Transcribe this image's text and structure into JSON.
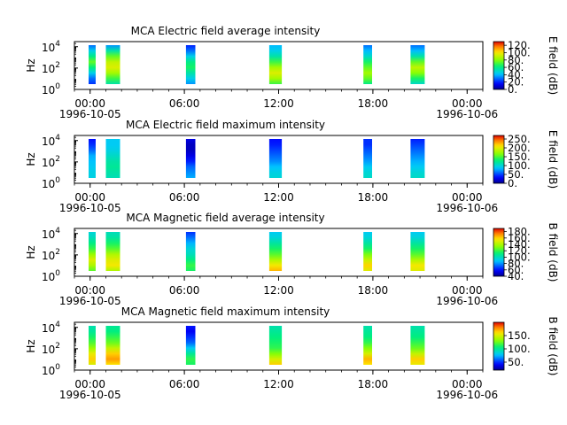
{
  "chart_data": [
    {
      "type": "heatmap",
      "title": "MCA  Electric field average intensity",
      "ylabel": "Hz",
      "y_scale": "log",
      "ylim": [
        1,
        30000
      ],
      "y_ticks": [
        {
          "label": "10",
          "exp": "0",
          "value": 1
        },
        {
          "label": "10",
          "exp": "2",
          "value": 100
        },
        {
          "label": "10",
          "exp": "4",
          "value": 10000
        }
      ],
      "x_ticks": [
        {
          "label": "00:00",
          "sub": "1996-10-05",
          "hour": 0
        },
        {
          "label": "06:00",
          "sub": "",
          "hour": 6
        },
        {
          "label": "12:00",
          "sub": "",
          "hour": 12
        },
        {
          "label": "18:00",
          "sub": "",
          "hour": 18
        },
        {
          "label": "00:00",
          "sub": "1996-10-06",
          "hour": 24
        }
      ],
      "xlim_hours": [
        -1,
        25
      ],
      "colorbar": {
        "label": "E field (dB)",
        "range": [
          0,
          130
        ],
        "ticks": [
          "0.",
          "20.",
          "40.",
          "60.",
          "80.",
          "100.",
          "120."
        ],
        "tick_values": [
          0,
          20,
          40,
          60,
          80,
          100,
          120
        ]
      },
      "bands": [
        {
          "start_hour": -0.1,
          "end_hour": 0.35,
          "profile": [
            22,
            30,
            45,
            62,
            75,
            60,
            45,
            30
          ]
        },
        {
          "start_hour": 1.0,
          "end_hour": 1.9,
          "profile": [
            55,
            70,
            85,
            95,
            90,
            75,
            55,
            35
          ]
        },
        {
          "start_hour": 6.1,
          "end_hour": 6.7,
          "profile": [
            35,
            45,
            55,
            65,
            60,
            45,
            30,
            20
          ]
        },
        {
          "start_hour": 11.4,
          "end_hour": 12.2,
          "profile": [
            70,
            85,
            95,
            85,
            70,
            55,
            45,
            40
          ]
        },
        {
          "start_hour": 17.4,
          "end_hour": 17.95,
          "profile": [
            60,
            75,
            85,
            75,
            65,
            50,
            40,
            30
          ]
        },
        {
          "start_hour": 20.4,
          "end_hour": 21.3,
          "profile": [
            50,
            65,
            80,
            90,
            75,
            55,
            40,
            30
          ]
        }
      ]
    },
    {
      "type": "heatmap",
      "title": "MCA  Electric field maximum intensity",
      "ylabel": "Hz",
      "y_scale": "log",
      "ylim": [
        1,
        30000
      ],
      "y_ticks": [
        {
          "label": "10",
          "exp": "0",
          "value": 1
        },
        {
          "label": "10",
          "exp": "2",
          "value": 100
        },
        {
          "label": "10",
          "exp": "4",
          "value": 10000
        }
      ],
      "x_ticks": [
        {
          "label": "00:00",
          "sub": "1996-10-05",
          "hour": 0
        },
        {
          "label": "06:00",
          "sub": "",
          "hour": 6
        },
        {
          "label": "12:00",
          "sub": "",
          "hour": 12
        },
        {
          "label": "18:00",
          "sub": "",
          "hour": 18
        },
        {
          "label": "00:00",
          "sub": "1996-10-06",
          "hour": 24
        }
      ],
      "xlim_hours": [
        -1,
        25
      ],
      "colorbar": {
        "label": "E field (dB)",
        "range": [
          0,
          270
        ],
        "ticks": [
          "0.",
          "50.",
          "100.",
          "150.",
          "200.",
          "250."
        ],
        "tick_values": [
          0,
          50,
          100,
          150,
          200,
          250
        ]
      },
      "bands": [
        {
          "start_hour": -0.1,
          "end_hour": 0.35,
          "profile": [
            95,
            95,
            90,
            85,
            80,
            60,
            45,
            35
          ]
        },
        {
          "start_hour": 1.0,
          "end_hour": 1.9,
          "profile": [
            110,
            115,
            120,
            115,
            105,
            95,
            90,
            90
          ]
        },
        {
          "start_hour": 6.1,
          "end_hour": 6.7,
          "profile": [
            80,
            70,
            60,
            40,
            25,
            15,
            15,
            25
          ]
        },
        {
          "start_hour": 11.4,
          "end_hour": 12.2,
          "profile": [
            100,
            95,
            85,
            70,
            60,
            50,
            40,
            35
          ]
        },
        {
          "start_hour": 17.4,
          "end_hour": 17.95,
          "profile": [
            105,
            100,
            90,
            75,
            65,
            55,
            45,
            45
          ]
        },
        {
          "start_hour": 20.4,
          "end_hour": 21.3,
          "profile": [
            105,
            100,
            90,
            80,
            70,
            60,
            50,
            40
          ]
        }
      ]
    },
    {
      "type": "heatmap",
      "title": "MCA  Magnetic field average intensity",
      "ylabel": "Hz",
      "y_scale": "log",
      "ylim": [
        1,
        30000
      ],
      "y_ticks": [
        {
          "label": "10",
          "exp": "0",
          "value": 1
        },
        {
          "label": "10",
          "exp": "2",
          "value": 100
        },
        {
          "label": "10",
          "exp": "4",
          "value": 10000
        }
      ],
      "x_ticks": [
        {
          "label": "00:00",
          "sub": "1996-10-05",
          "hour": 0
        },
        {
          "label": "06:00",
          "sub": "",
          "hour": 6
        },
        {
          "label": "12:00",
          "sub": "",
          "hour": 12
        },
        {
          "label": "18:00",
          "sub": "",
          "hour": 18
        },
        {
          "label": "00:00",
          "sub": "1996-10-06",
          "hour": 24
        }
      ],
      "xlim_hours": [
        -1,
        25
      ],
      "colorbar": {
        "label": "B field (dB)",
        "range": [
          40,
          190
        ],
        "ticks": [
          "40.",
          "60.",
          "80.",
          "100.",
          "120.",
          "140.",
          "160.",
          "180."
        ],
        "tick_values": [
          40,
          60,
          80,
          100,
          120,
          140,
          160,
          180
        ]
      },
      "bands": [
        {
          "start_hour": -0.1,
          "end_hour": 0.35,
          "profile": [
            125,
            140,
            150,
            135,
            120,
            110,
            100,
            95
          ]
        },
        {
          "start_hour": 1.0,
          "end_hour": 1.9,
          "profile": [
            140,
            155,
            150,
            140,
            125,
            115,
            105,
            100
          ]
        },
        {
          "start_hour": 6.1,
          "end_hour": 6.7,
          "profile": [
            115,
            120,
            110,
            100,
            95,
            85,
            75,
            65
          ]
        },
        {
          "start_hour": 11.4,
          "end_hour": 12.2,
          "profile": [
            165,
            155,
            140,
            125,
            115,
            105,
            95,
            90
          ]
        },
        {
          "start_hour": 17.4,
          "end_hour": 17.95,
          "profile": [
            150,
            160,
            145,
            130,
            115,
            105,
            95,
            90
          ]
        },
        {
          "start_hour": 20.4,
          "end_hour": 21.3,
          "profile": [
            150,
            155,
            140,
            125,
            115,
            105,
            95,
            90
          ]
        }
      ]
    },
    {
      "type": "heatmap",
      "title": "MCA  Magnetic field maximum intensity",
      "ylabel": "Hz",
      "y_scale": "log",
      "ylim": [
        1,
        30000
      ],
      "y_ticks": [
        {
          "label": "10",
          "exp": "0",
          "value": 1
        },
        {
          "label": "10",
          "exp": "2",
          "value": 100
        },
        {
          "label": "10",
          "exp": "4",
          "value": 10000
        }
      ],
      "x_ticks": [
        {
          "label": "00:00",
          "sub": "1996-10-05",
          "hour": 0
        },
        {
          "label": "06:00",
          "sub": "",
          "hour": 6
        },
        {
          "label": "12:00",
          "sub": "",
          "hour": 12
        },
        {
          "label": "18:00",
          "sub": "",
          "hour": 18
        },
        {
          "label": "00:00",
          "sub": "1996-10-06",
          "hour": 24
        }
      ],
      "xlim_hours": [
        -1,
        25
      ],
      "colorbar": {
        "label": "B field (dB)",
        "range": [
          20,
          200
        ],
        "ticks": [
          "50.",
          "100.",
          "150."
        ],
        "tick_values": [
          50,
          100,
          150
        ]
      },
      "bands": [
        {
          "start_hour": -0.1,
          "end_hour": 0.35,
          "profile": [
            150,
            165,
            155,
            135,
            120,
            110,
            100,
            95
          ]
        },
        {
          "start_hour": 1.0,
          "end_hour": 1.9,
          "profile": [
            160,
            175,
            165,
            145,
            125,
            115,
            105,
            100
          ]
        },
        {
          "start_hour": 6.1,
          "end_hour": 6.7,
          "profile": [
            110,
            115,
            100,
            80,
            60,
            50,
            40,
            45
          ]
        },
        {
          "start_hour": 11.4,
          "end_hour": 12.2,
          "profile": [
            165,
            150,
            130,
            115,
            110,
            105,
            100,
            95
          ]
        },
        {
          "start_hour": 17.4,
          "end_hour": 17.95,
          "profile": [
            160,
            170,
            150,
            130,
            115,
            105,
            100,
            95
          ]
        },
        {
          "start_hour": 20.4,
          "end_hour": 21.3,
          "profile": [
            155,
            165,
            145,
            125,
            115,
            105,
            100,
            95
          ]
        }
      ]
    }
  ]
}
